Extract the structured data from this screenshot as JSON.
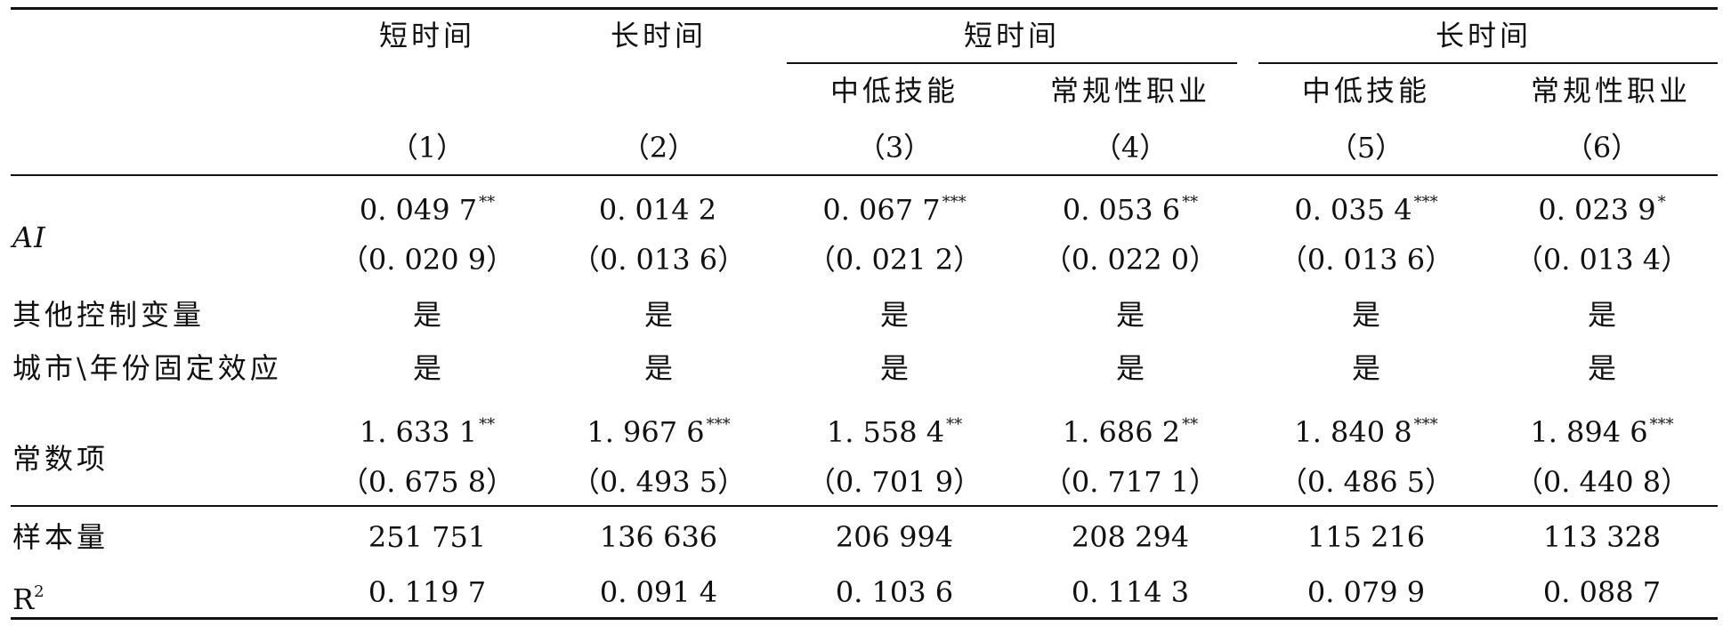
{
  "header": {
    "groups": [
      {
        "label": "短时间"
      },
      {
        "label": "长时间"
      },
      {
        "label": "短时间"
      },
      {
        "label": "长时间"
      }
    ],
    "subgroups": [
      "中低技能",
      "常规性职业",
      "中低技能",
      "常规性职业"
    ],
    "col_numbers": [
      "（1）",
      "（2）",
      "（3）",
      "（4）",
      "（5）",
      "（6）"
    ]
  },
  "rows": {
    "ai": {
      "label": "AI",
      "coef": [
        {
          "value": "0. 049 7",
          "stars": "**"
        },
        {
          "value": "0. 014 2",
          "stars": ""
        },
        {
          "value": "0. 067 7",
          "stars": "***"
        },
        {
          "value": "0. 053 6",
          "stars": "**"
        },
        {
          "value": "0. 035 4",
          "stars": "***"
        },
        {
          "value": "0. 023 9",
          "stars": "*"
        }
      ],
      "se": [
        "（0. 020 9）",
        "（0. 013 6）",
        "（0. 021 2）",
        "（0. 022 0）",
        "（0. 013 6）",
        "（0. 013 4）"
      ]
    },
    "controls": {
      "label": "其他控制变量",
      "values": [
        "是",
        "是",
        "是",
        "是",
        "是",
        "是"
      ]
    },
    "fixed_effects": {
      "label": "城市\\年份固定效应",
      "values": [
        "是",
        "是",
        "是",
        "是",
        "是",
        "是"
      ]
    },
    "constant": {
      "label": "常数项",
      "coef": [
        {
          "value": "1. 633 1",
          "stars": "**"
        },
        {
          "value": "1. 967 6",
          "stars": "***"
        },
        {
          "value": "1. 558 4",
          "stars": "**"
        },
        {
          "value": "1. 686 2",
          "stars": "**"
        },
        {
          "value": "1. 840 8",
          "stars": "***"
        },
        {
          "value": "1. 894 6",
          "stars": "***"
        }
      ],
      "se": [
        "（0. 675 8）",
        "（0. 493 5）",
        "（0. 701 9）",
        "（0. 717 1）",
        "（0. 486 5）",
        "（0. 440 8）"
      ]
    },
    "n": {
      "label": "样本量",
      "values": [
        "251 751",
        "136 636",
        "206 994",
        "208 294",
        "115 216",
        "113 328"
      ]
    },
    "r2": {
      "label": "R",
      "label_sup": "2",
      "values": [
        "0. 119 7",
        "0. 091 4",
        "0. 103 6",
        "0. 114 3",
        "0. 079 9",
        "0. 088 7"
      ]
    }
  }
}
